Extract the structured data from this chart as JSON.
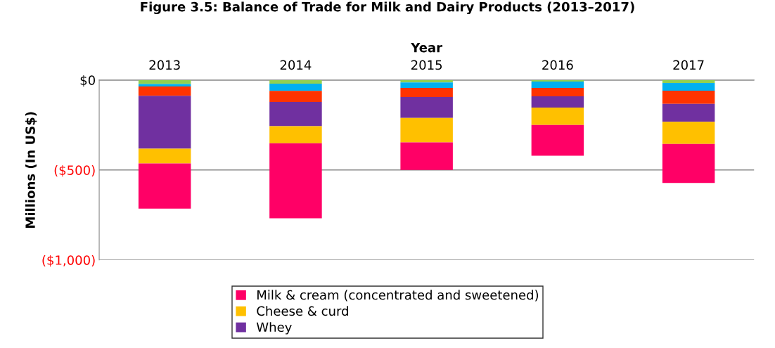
{
  "chart_data": {
    "type": "bar",
    "stacked": true,
    "title": "Figure 3.5: Balance of Trade for Milk and Dairy Products (2013–2017)",
    "xlabel": "Year",
    "ylabel": "Millions (In US$)",
    "categories": [
      "2013",
      "2014",
      "2015",
      "2016",
      "2017"
    ],
    "series": [
      {
        "color": "#92d050",
        "values": [
          -22,
          -20,
          -13,
          -8,
          -16
        ]
      },
      {
        "color": "#00b0f0",
        "values": [
          -14,
          -40,
          -31,
          -36,
          -43
        ]
      },
      {
        "color": "#ff3300",
        "values": [
          -52,
          -62,
          -50,
          -46,
          -73
        ]
      },
      {
        "name": "Whey",
        "color": "#7030a0",
        "values": [
          -294,
          -135,
          -117,
          -63,
          -100
        ]
      },
      {
        "name": "Cheese & curd",
        "color": "#ffc000",
        "values": [
          -82,
          -94,
          -135,
          -97,
          -123
        ]
      },
      {
        "name": "Milk & cream (concentrated and sweetened)",
        "color": "#ff0066",
        "values": [
          -251,
          -417,
          -154,
          -171,
          -217
        ]
      }
    ],
    "ylim": [
      -1000,
      0
    ],
    "yticks": [
      {
        "value": 0,
        "label": "$0"
      },
      {
        "value": -500,
        "label": "($500)"
      },
      {
        "value": -1000,
        "label": "($1,000)"
      }
    ],
    "grid": "y",
    "legend": "bottom"
  }
}
